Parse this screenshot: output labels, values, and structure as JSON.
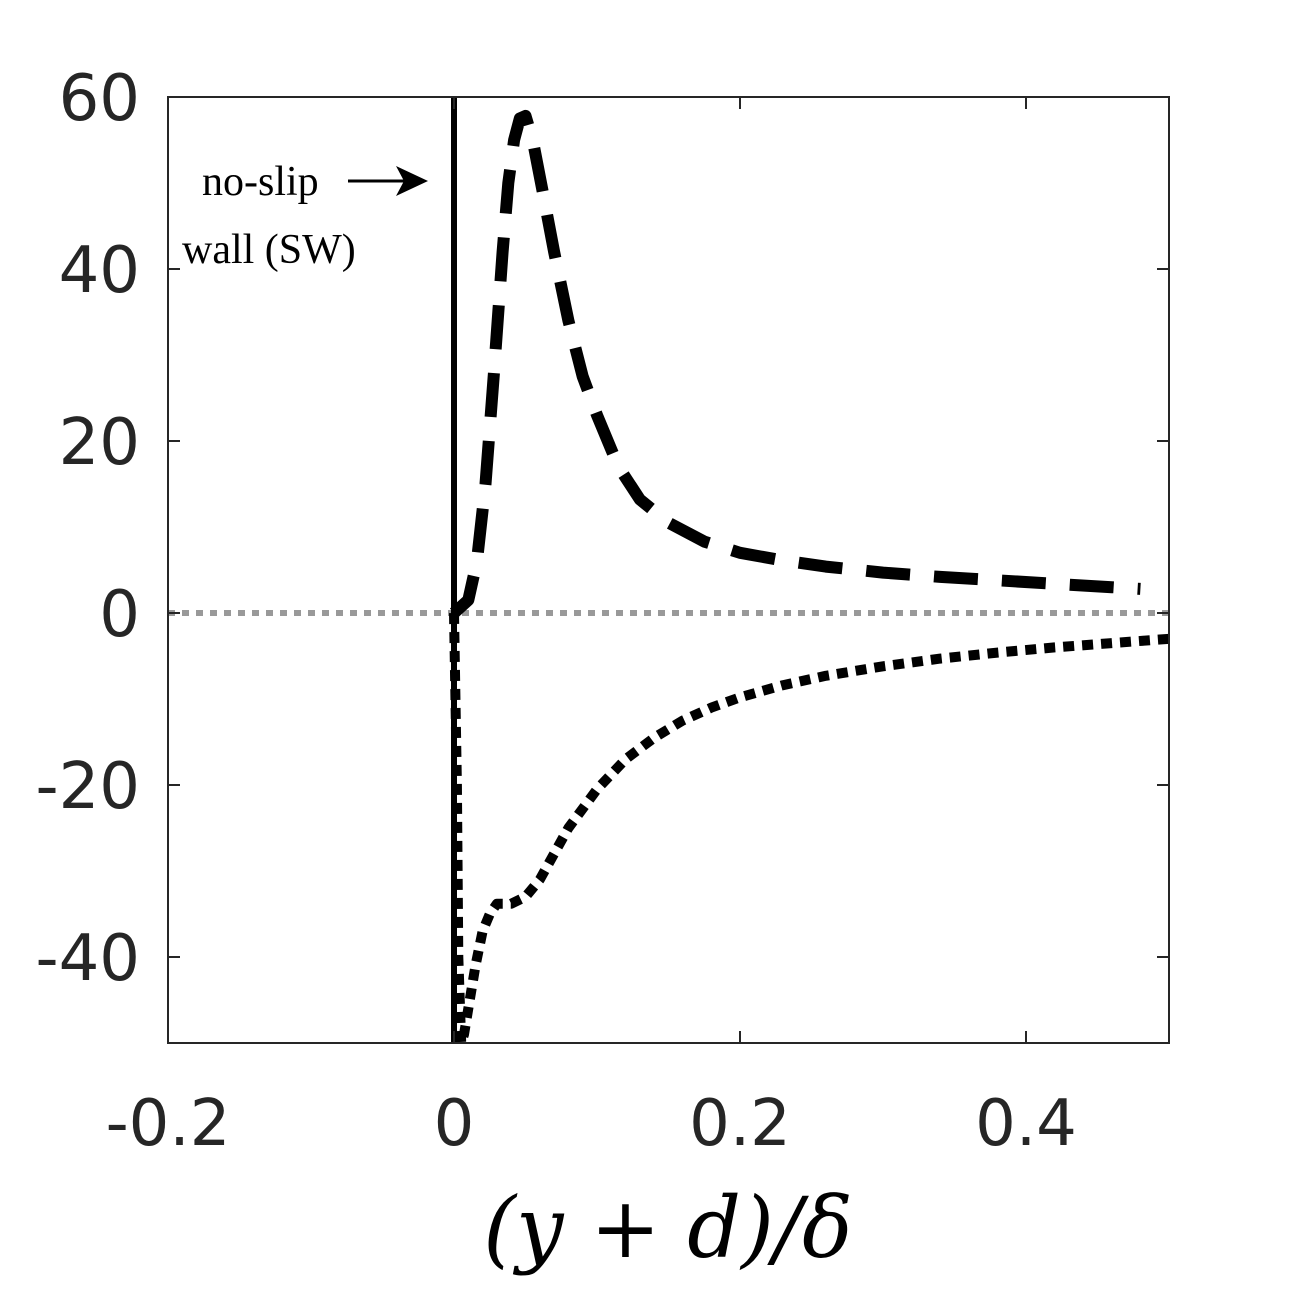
{
  "chart_data": {
    "type": "line",
    "title": "",
    "xlabel": "(y + d)/δ",
    "ylabel": "",
    "xlim": [
      -0.2,
      0.5
    ],
    "ylim": [
      -50,
      60
    ],
    "xticks": [
      -0.2,
      0,
      0.2,
      0.4
    ],
    "xtick_labels": [
      "-0.2",
      "0",
      "0.2",
      "0.4"
    ],
    "yticks": [
      -40,
      -20,
      0,
      20,
      40,
      60
    ],
    "ytick_labels": [
      "-40",
      "-20",
      "0",
      "20",
      "40",
      "60"
    ],
    "grid": false,
    "legend": "none",
    "annotations": [
      {
        "text": "no-slip",
        "arrow_to": {
          "x": -0.018,
          "y": 50
        }
      },
      {
        "text": "wall (SW)"
      }
    ],
    "series": [
      {
        "style": "solid",
        "color": "#000000",
        "x": [
          0,
          0
        ],
        "y": [
          -50,
          60
        ]
      },
      {
        "style": "dashed",
        "color": "#000000",
        "x": [
          0.0,
          0.01,
          0.016,
          0.022,
          0.028,
          0.034,
          0.038,
          0.042,
          0.046,
          0.05,
          0.055,
          0.062,
          0.07,
          0.08,
          0.09,
          0.1,
          0.115,
          0.13,
          0.15,
          0.175,
          0.2,
          0.23,
          0.26,
          0.3,
          0.34,
          0.38,
          0.42,
          0.46,
          0.48
        ],
        "y": [
          0.0,
          1.5,
          6.0,
          15.0,
          28.0,
          42.0,
          50.0,
          55.0,
          57.5,
          57.8,
          55.0,
          49.0,
          42.0,
          34.0,
          27.5,
          23.0,
          17.0,
          13.2,
          10.5,
          8.3,
          7.0,
          6.1,
          5.4,
          4.7,
          4.2,
          3.8,
          3.4,
          3.0,
          2.8
        ]
      },
      {
        "style": "dotted",
        "color": "#000000",
        "x": [
          0.0,
          0.002,
          0.003,
          0.005,
          0.007,
          0.01,
          0.015,
          0.02,
          0.025,
          0.03,
          0.035,
          0.04,
          0.05,
          0.06,
          0.07,
          0.08,
          0.1,
          0.12,
          0.14,
          0.16,
          0.18,
          0.2,
          0.23,
          0.26,
          0.3,
          0.34,
          0.38,
          0.42,
          0.46,
          0.5
        ],
        "y": [
          0.0,
          -20.0,
          -40.0,
          -50.0,
          -49.0,
          -46.0,
          -41.0,
          -37.0,
          -35.0,
          -33.8,
          -33.8,
          -33.8,
          -33.0,
          -31.0,
          -28.0,
          -25.0,
          -20.5,
          -17.0,
          -14.5,
          -12.5,
          -11.0,
          -9.8,
          -8.4,
          -7.3,
          -6.2,
          -5.3,
          -4.6,
          -4.0,
          -3.5,
          -3.0
        ]
      },
      {
        "style": "dotted",
        "color": "#999999",
        "x": [
          -0.2,
          0.5
        ],
        "y": [
          0,
          0
        ]
      }
    ]
  }
}
